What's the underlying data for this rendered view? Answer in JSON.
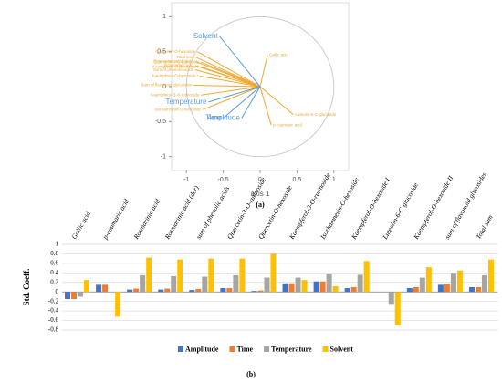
{
  "chart_data": [
    {
      "type": "biplot",
      "x_label": "axis 1",
      "caption": "(a)",
      "xlim": [
        -1.2,
        1.2
      ],
      "ylim": [
        -1.2,
        1.2
      ],
      "xticks": [
        -1,
        -0.5,
        0,
        0.5,
        1
      ],
      "yticks": [
        -1,
        -0.5,
        0,
        0.5,
        1
      ],
      "variables": {
        "color": "#5b9bd5",
        "items": [
          {
            "name": "Solvent",
            "x": -0.55,
            "y": 0.72
          },
          {
            "name": "Temperature",
            "x": -0.7,
            "y": -0.22
          },
          {
            "name": "Time",
            "x": -0.5,
            "y": -0.45
          },
          {
            "name": "Amplitude",
            "x": -0.25,
            "y": -0.45
          }
        ]
      },
      "responses": {
        "color": "#f0a830",
        "items": [
          {
            "name": "Gallic acid",
            "x": 0.1,
            "y": 0.45
          },
          {
            "name": "Luteolin-6-C-glucoside",
            "x": 0.45,
            "y": -0.4
          },
          {
            "name": "p-coumaric acid",
            "x": 0.15,
            "y": -0.55
          },
          {
            "name": "Quercetin-O-hexoside",
            "x": -0.85,
            "y": 0.5
          },
          {
            "name": "Total sum",
            "x": -0.87,
            "y": 0.42
          },
          {
            "name": "Rosmarinic acid (der.)",
            "x": -0.88,
            "y": 0.36
          },
          {
            "name": "Rosmarinic acid",
            "x": -0.88,
            "y": 0.3
          },
          {
            "name": "Sum of phenolic acids",
            "x": -0.88,
            "y": 0.24
          },
          {
            "name": "Kaempferol-O-hexoside I",
            "x": -0.82,
            "y": 0.15
          },
          {
            "name": "Sum of flavonoid glycosides",
            "x": -0.9,
            "y": 0.02
          },
          {
            "name": "Kaempferol-3-O-rutinoside",
            "x": -0.8,
            "y": -0.12
          },
          {
            "name": "Isorhamnetin-O-hexoside",
            "x": -0.78,
            "y": -0.33
          },
          {
            "name": "Quercetin-3-O-rutinoside",
            "x": -0.8,
            "y": 0.35
          },
          {
            "name": "Kaempferol-O-hexoside II",
            "x": -0.8,
            "y": 0.28
          }
        ]
      }
    },
    {
      "type": "bar",
      "y_label": "Std. Coeff.",
      "caption": "(b)",
      "categories": [
        "Gallic acid",
        "p-coumaric acid",
        "Rosmarinic acid",
        "Rosmarinic acid (der)",
        "sum of phenolic acids",
        "Quercetin-3-O-rutinoside",
        "Quercetin-O-hexoside",
        "Kaempferol-3-O-rutinoside",
        "Isorhamnetin-O-hexoside",
        "Kaempferol-O-hexoside I",
        "Luteolin-6-C-glucoside",
        "Kaempferol-O-hexoside II",
        "sum of flavonoid glycosides",
        "Total sum"
      ],
      "series": [
        {
          "name": "Amplitude",
          "color": "#4472c4",
          "values": [
            -0.15,
            0.15,
            0.05,
            0.05,
            0.04,
            0.08,
            0.02,
            0.18,
            0.22,
            0.08,
            0.0,
            0.08,
            0.15,
            0.1
          ]
        },
        {
          "name": "Time",
          "color": "#ed7d31",
          "values": [
            -0.15,
            0.15,
            0.07,
            0.07,
            0.06,
            0.08,
            0.03,
            0.18,
            0.22,
            0.1,
            0.0,
            0.1,
            0.17,
            0.1
          ]
        },
        {
          "name": "Temperature",
          "color": "#a5a5a5",
          "values": [
            -0.1,
            0.0,
            0.35,
            0.33,
            0.32,
            0.35,
            0.3,
            0.3,
            0.38,
            0.36,
            -0.25,
            0.3,
            0.4,
            0.35
          ]
        },
        {
          "name": "Solvent",
          "color": "#ffc000",
          "values": [
            0.25,
            -0.52,
            0.72,
            0.68,
            0.7,
            0.7,
            0.8,
            0.25,
            0.12,
            0.65,
            -0.7,
            0.52,
            0.45,
            0.68
          ]
        }
      ],
      "ylim": [
        -0.8,
        1
      ],
      "yticks": [
        1,
        0.8,
        0.6,
        0.4,
        0.2,
        0,
        -0.2,
        -0.4,
        -0.6,
        -0.8
      ],
      "grid": true,
      "legend": "bottom"
    }
  ]
}
